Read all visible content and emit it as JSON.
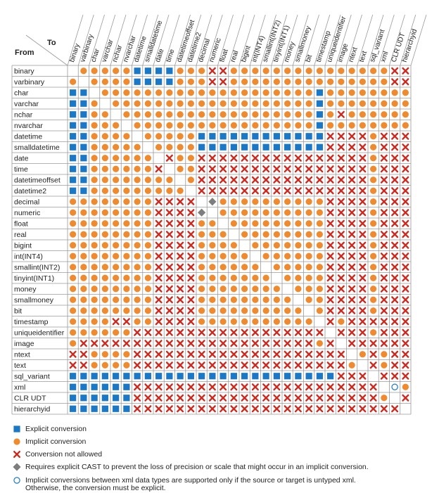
{
  "corner": {
    "to_label": "To",
    "from_label": "From"
  },
  "types": [
    "binary",
    "varbinary",
    "char",
    "varchar",
    "nchar",
    "nvarchar",
    "datetime",
    "smalldatetime",
    "date",
    "time",
    "datetimeoffset",
    "datetime2",
    "decimal",
    "numeric",
    "float",
    "real",
    "bigint",
    "int(INT4)",
    "smallint(INT2)",
    "tinyint(INT1)",
    "money",
    "smallmoney",
    "bit",
    "timestamp",
    "uniqueidentifier",
    "image",
    "ntext",
    "text",
    "sql_variant",
    "xml",
    "CLR UDT",
    "hierarchyid"
  ],
  "cell_codes": {
    "E": "explicit",
    "I": "implicit",
    "X": "not-allowed",
    "D": "cast-required",
    "O": "untyped-xml",
    "-": "none"
  },
  "matrix": [
    "-IIIIIEEEEIIIXXIIIIIIIIIIIIIIIXX",
    "I-IIIIEEEEIIIXXIIIIIIIIIIIIIIIXX",
    "EE-IIIIIIIIIIIIIIIIIIIIEIIIIIIII",
    "EEI-IIIIIIIIIIIIIIIIIIIEIIIIIIII",
    "EEII-IIIIIIIIIIIIIIIIIIEIXIIIIII",
    "EEIII-IIIIIIIIIIIIIIIIIEIIIIIIII",
    "EEIIII-IIIIIEEEEEEEEEEEEXXXXIXXX",
    "EEIIIII-IIIIEEEEEEEEEEEEXXXXIXXX",
    "EEIIIIII-XIIXXXXXXXXXXXXXXXXIXXX",
    "EEIIIIIIX-IIXXXXXXXXXXXXXXXXIXXX",
    "EEIIIIIIII-IXXXXXXXXXXXXXXXXIXXX",
    "EEIIIIIIIII-XXXXXXXXXXXXXXXXIXXX",
    "IIIIIIIIXXXX-DIIIIIIIIIIXXXXIXXX",
    "IIIIIIIIXXXXD-IIIIIIIIIIXXXXIXXX",
    "IIIIIIIIXXXXII-IIIIIIIIIXXXXIXXX",
    "IIIIIIIIXXXXIII-IIIIIIIIXXXXIXXX",
    "IIIIIIIIXXXXIIII-IIIIIIIXXXXIXXX",
    "IIIIIIIIXXXXIIIII-IIIIIIXXXXIXXX",
    "IIIIIIIIXXXXIIIIII-IIIIIXXXXIXXX",
    "IIIIIIIIXXXXIIIIIII-IIIIXXXXIXXX",
    "IIIIIIIIXXXXIIIIIIII-IIIXXXXIXXX",
    "IIIIIIIIXXXXIIIIIIIII-IIXXXXIXXX",
    "IIIIIIIIXXXXIIIIIIIIII-IXXXXIXXX",
    "IIIIXXIIXXXXIIIIIIIIIII-XIXXXXXX",
    "IIIIIIXXXXXXXXXXXXXXXXXX-XXXIXXX",
    "IXXXXXXXXXXXXXXXXXXXXXXIX-XXXXXX",
    "XXIIIIXXXXXXXXXXXXXXXXXXXX-IXIXX",
    "XXIIIIXXXXXXXXXXXXXXXXXXXXI-XIXX",
    "EEEEEEEEEEEEEEEEEEEEEEEEEXXX-XXX",
    "EEEEEEXXXXXXXXXXXXXXXXXXXXXXX-OI",
    "EEEEEEXXXXXXXXXXXXXXXXXXXXXXXI-X",
    "EEEEEEXXXXXXXXXXXXXXXXXXXXXXXXX-"
  ],
  "legend": [
    {
      "symbol": "explicit",
      "icon": "blue-square-icon",
      "text": "Explicit conversion"
    },
    {
      "symbol": "implicit",
      "icon": "orange-circle-icon",
      "text": "Implicit conversion"
    },
    {
      "symbol": "not-allowed",
      "icon": "red-x-icon",
      "text": "Conversion not allowed"
    },
    {
      "symbol": "cast-required",
      "icon": "gray-diamond-icon",
      "text": "Requires explicit CAST to prevent the loss of precision or scale that might occur in an implicit conversion."
    },
    {
      "symbol": "untyped-xml",
      "icon": "hollow-circle-icon",
      "text": "Implicit conversions between xml data types are supported only if the source or target is untyped xml.",
      "text2": "Otherwise, the conversion must be explicit."
    }
  ],
  "colors": {
    "explicit": "#1b78c6",
    "implicit": "#ef8a2e",
    "not_allowed": "#d0271d",
    "cast": "#7e7e7e",
    "untyped_xml": "#1b78c6",
    "grid": "#9a9a9a",
    "text": "#222222"
  }
}
